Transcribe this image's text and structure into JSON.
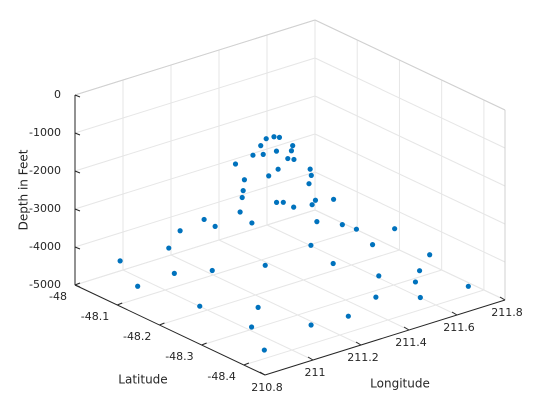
{
  "chart_data": {
    "type": "scatter3",
    "xlabel": "Longitude",
    "ylabel": "Latitude",
    "zlabel": "Depth in Feet",
    "xlim": [
      210.8,
      211.8
    ],
    "ylim": [
      -48.45,
      -48
    ],
    "zlim": [
      -5000,
      0
    ],
    "xticks": [
      210.8,
      211,
      211.2,
      211.4,
      211.6,
      211.8
    ],
    "yticks": [
      -48,
      -48.1,
      -48.2,
      -48.3,
      -48.4
    ],
    "zticks": [
      -5000,
      -4000,
      -3000,
      -2000,
      -1000,
      0
    ],
    "grid": true,
    "color": "#0072bd",
    "x": [
      211.3,
      211.28,
      211.32,
      211.27,
      211.33,
      211.29,
      211.25,
      211.35,
      211.31,
      211.26,
      211.34,
      211.22,
      211.37,
      211.3,
      211.24,
      211.38,
      211.2,
      211.4,
      211.18,
      211.42,
      211.28,
      211.33,
      211.15,
      211.45,
      211.22,
      211.36,
      211.12,
      211.48,
      211.26,
      211.1,
      211.5,
      210.9,
      210.95,
      210.88,
      210.92,
      210.85,
      211.05,
      211.02,
      211.0,
      211.08,
      211.2,
      211.15,
      211.35,
      211.45,
      211.55,
      211.6,
      211.65,
      211.7,
      211.58,
      211.75,
      211.7,
      211.5,
      211.62,
      211.4,
      211.25,
      210.85,
      211.78
    ],
    "y": [
      -48.2,
      -48.18,
      -48.22,
      -48.21,
      -48.17,
      -48.24,
      -48.19,
      -48.2,
      -48.15,
      -48.16,
      -48.25,
      -48.22,
      -48.18,
      -48.27,
      -48.13,
      -48.23,
      -48.25,
      -48.14,
      -48.18,
      -48.26,
      -48.3,
      -48.1,
      -48.22,
      -48.2,
      -48.32,
      -48.08,
      -48.15,
      -48.28,
      -48.35,
      -48.28,
      -48.12,
      -48.05,
      -48.15,
      -48.25,
      -48.35,
      -48.42,
      -48.08,
      -48.2,
      -48.32,
      -48.4,
      -48.42,
      -48.05,
      -48.4,
      -48.35,
      -48.38,
      -48.25,
      -48.15,
      -48.05,
      -48.05,
      -48.3,
      -48.42,
      -48.42,
      -48.35,
      -48.05,
      -48.05,
      -48.12,
      -48.2
    ],
    "z": [
      -1050,
      -1150,
      -1200,
      -1300,
      -1250,
      -1400,
      -1450,
      -1500,
      -1550,
      -1650,
      -1700,
      -1800,
      -1850,
      -1900,
      -2000,
      -2050,
      -2300,
      -2400,
      -2500,
      -2600,
      -2700,
      -2750,
      -2900,
      -3000,
      -3100,
      -3200,
      -3300,
      -3400,
      -3500,
      -3600,
      -3700,
      -4300,
      -4200,
      -4400,
      -4500,
      -4600,
      -4100,
      -4000,
      -4300,
      -4500,
      -4400,
      -4000,
      -4300,
      -4200,
      -4400,
      -4200,
      -4300,
      -4400,
      -4100,
      -4500,
      -4600,
      -4500,
      -4400,
      -4000,
      -3900,
      -4500,
      -4400
    ]
  }
}
